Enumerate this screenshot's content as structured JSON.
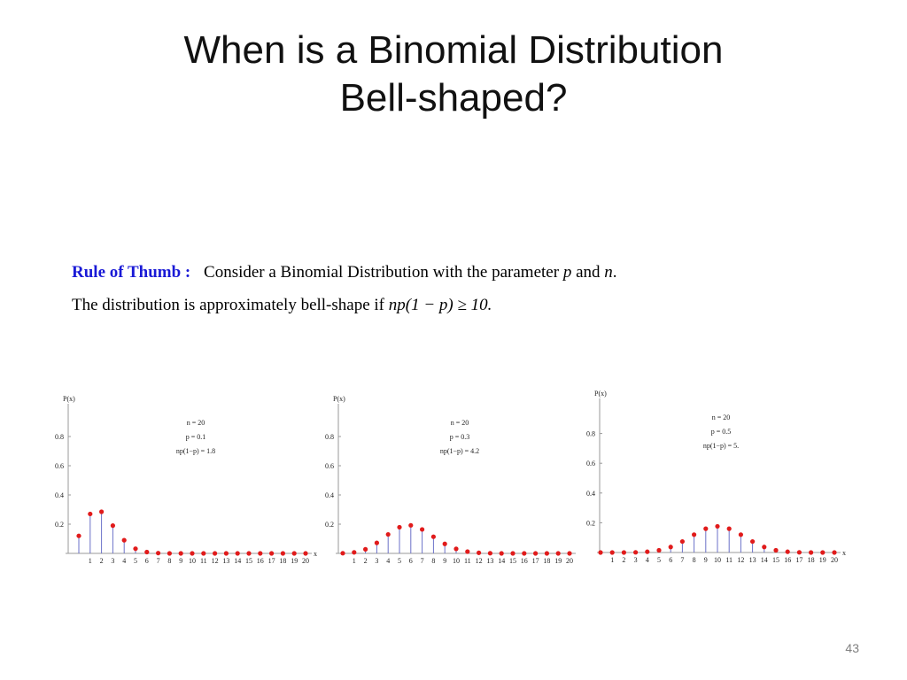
{
  "slide": {
    "title_line1": "When is a Binomial Distribution",
    "title_line2": "Bell-shaped?",
    "number": "43"
  },
  "rule": {
    "label": "Rule of Thumb :",
    "line1_text": "Consider a Binomial Distribution with the parameter",
    "line1_p": "p",
    "line1_and": "and",
    "line1_n": "n",
    "line1_end": ".",
    "line2_text": "The distribution is approximately bell-shape if",
    "line2_formula": "np(1 − p) ≥ 10."
  },
  "colors": {
    "point": "#e11b1b",
    "stem": "#6b72c8",
    "axis": "#9a9a9a",
    "label_blue": "#1a1ad6"
  },
  "chart_data": [
    {
      "type": "scatter",
      "ylabel": "P(x)",
      "xlabel": "x",
      "yticks": [
        "0.2",
        "0.4",
        "0.6",
        "0.8"
      ],
      "ylim": [
        0,
        1.0
      ],
      "annotations": [
        "n = 20",
        "p = 0.1",
        "np(1−p) = 1.8"
      ],
      "x": [
        0,
        1,
        2,
        3,
        4,
        5,
        6,
        7,
        8,
        9,
        10,
        11,
        12,
        13,
        14,
        15,
        16,
        17,
        18,
        19,
        20
      ],
      "values": [
        0.12,
        0.27,
        0.285,
        0.19,
        0.09,
        0.032,
        0.009,
        0.002,
        0,
        0,
        0,
        0,
        0,
        0,
        0,
        0,
        0,
        0,
        0,
        0,
        0
      ]
    },
    {
      "type": "scatter",
      "ylabel": "P(x)",
      "xlabel": "",
      "yticks": [
        "0.2",
        "0.4",
        "0.6",
        "0.8"
      ],
      "ylim": [
        0,
        1.0
      ],
      "annotations": [
        "n = 20",
        "p = 0.3",
        "np(1−p) = 4.2"
      ],
      "x": [
        0,
        1,
        2,
        3,
        4,
        5,
        6,
        7,
        8,
        9,
        10,
        11,
        12,
        13,
        14,
        15,
        16,
        17,
        18,
        19,
        20
      ],
      "values": [
        0.001,
        0.007,
        0.028,
        0.072,
        0.13,
        0.179,
        0.192,
        0.164,
        0.114,
        0.065,
        0.031,
        0.012,
        0.004,
        0.001,
        0,
        0,
        0,
        0,
        0,
        0,
        0
      ]
    },
    {
      "type": "scatter",
      "ylabel": "P(x)",
      "xlabel": "x",
      "yticks": [
        "0.2",
        "0.4",
        "0.6",
        "0.8"
      ],
      "ylim": [
        0,
        1.0
      ],
      "annotations": [
        "n = 20",
        "p = 0.5",
        "np(1−p) = 5."
      ],
      "x": [
        0,
        1,
        2,
        3,
        4,
        5,
        6,
        7,
        8,
        9,
        10,
        11,
        12,
        13,
        14,
        15,
        16,
        17,
        18,
        19,
        20
      ],
      "values": [
        0,
        0,
        0,
        0.001,
        0.005,
        0.015,
        0.037,
        0.074,
        0.12,
        0.16,
        0.176,
        0.16,
        0.12,
        0.074,
        0.037,
        0.015,
        0.005,
        0.001,
        0,
        0,
        0
      ]
    }
  ]
}
